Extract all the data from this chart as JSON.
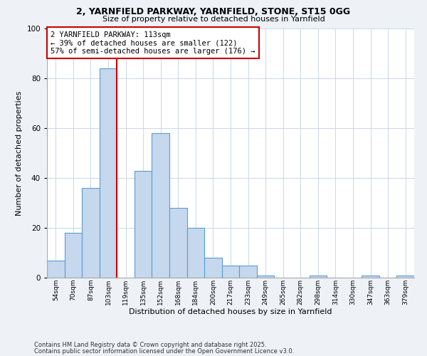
{
  "title": "2, YARNFIELD PARKWAY, YARNFIELD, STONE, ST15 0GG",
  "subtitle": "Size of property relative to detached houses in Yarnfield",
  "xlabel": "Distribution of detached houses by size in Yarnfield",
  "ylabel": "Number of detached properties",
  "bin_labels": [
    "54sqm",
    "70sqm",
    "87sqm",
    "103sqm",
    "119sqm",
    "135sqm",
    "152sqm",
    "168sqm",
    "184sqm",
    "200sqm",
    "217sqm",
    "233sqm",
    "249sqm",
    "265sqm",
    "282sqm",
    "298sqm",
    "314sqm",
    "330sqm",
    "347sqm",
    "363sqm",
    "379sqm"
  ],
  "bar_heights": [
    7,
    18,
    36,
    84,
    0,
    43,
    58,
    28,
    20,
    8,
    5,
    5,
    1,
    0,
    0,
    1,
    0,
    0,
    1,
    0,
    1
  ],
  "bar_color": "#c5d8ed",
  "bar_edge_color": "#5b9bd5",
  "vline_color": "#cc0000",
  "annotation_box_text": "2 YARNFIELD PARKWAY: 113sqm\n← 39% of detached houses are smaller (122)\n57% of semi-detached houses are larger (176) →",
  "annotation_box_color": "#cc0000",
  "ylim": [
    0,
    100
  ],
  "yticks": [
    0,
    20,
    40,
    60,
    80,
    100
  ],
  "footer1": "Contains HM Land Registry data © Crown copyright and database right 2025.",
  "footer2": "Contains public sector information licensed under the Open Government Licence v3.0.",
  "background_color": "#eef2f7",
  "plot_bg_color": "#ffffff",
  "grid_color": "#c8d8e8"
}
